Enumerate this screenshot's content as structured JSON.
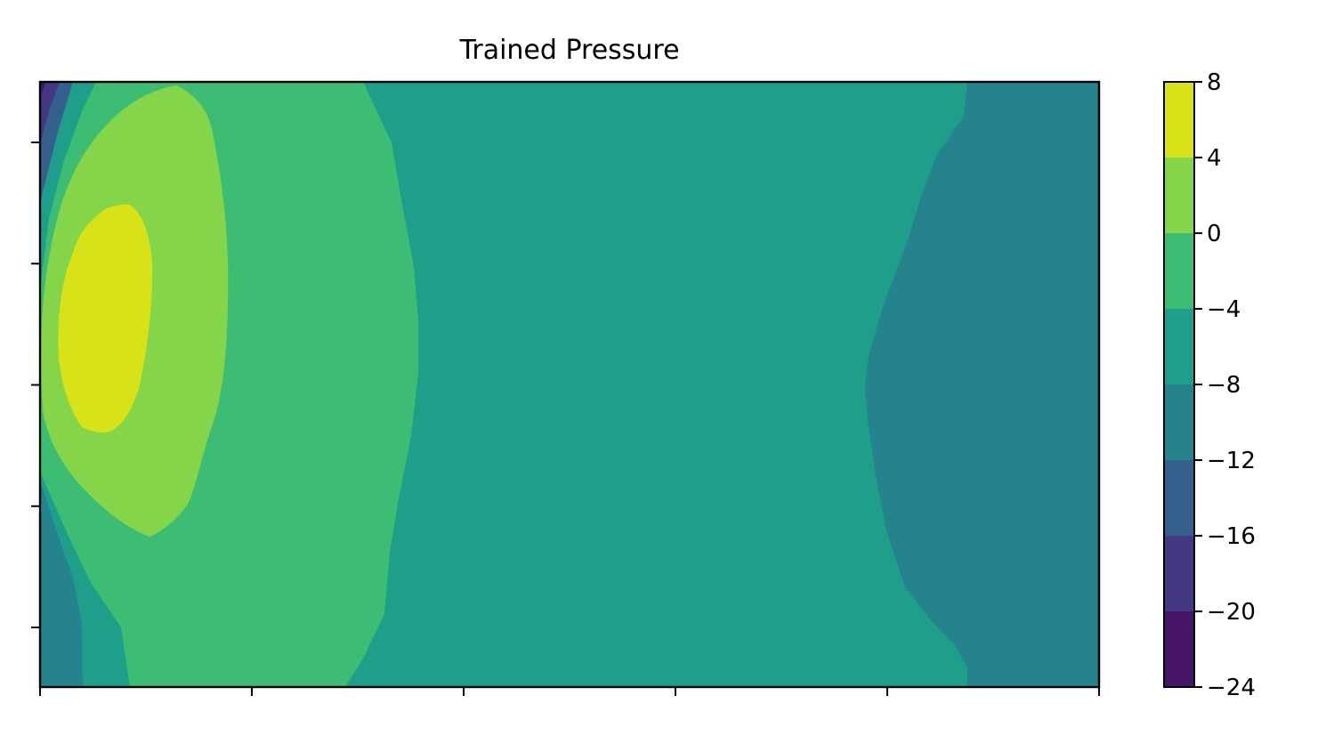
{
  "chart_data": {
    "type": "contour",
    "title": "Trained Pressure",
    "xlabel": "",
    "ylabel": "",
    "x_ticks_count": 6,
    "y_ticks_count": 5,
    "x_tick_labels_shown": false,
    "y_tick_labels_shown": false,
    "colormap": "viridis",
    "colorbar": {
      "levels": [
        -24,
        -20,
        -16,
        -12,
        -8,
        -4,
        0,
        4,
        8
      ],
      "tick_labels": [
        "−24",
        "−20",
        "−16",
        "−12",
        "−8",
        "−4",
        "0",
        "4",
        "8"
      ],
      "colors": [
        "#481668",
        "#453882",
        "#355f8d",
        "#25838e",
        "#1f9e89",
        "#3dbc74",
        "#85d54a",
        "#d8e219"
      ]
    },
    "regions": [
      {
        "level_range": [
          -24,
          -20
        ],
        "description": "left edge, top-left corner strip"
      },
      {
        "level_range": [
          -20,
          -16
        ],
        "description": "left edge, top strip"
      },
      {
        "level_range": [
          -16,
          -12
        ],
        "description": "left edge, top and bottom strips"
      },
      {
        "level_range": [
          -12,
          -8
        ],
        "description": "right portion of domain and left edge strips"
      },
      {
        "level_range": [
          -8,
          -4
        ],
        "description": "central band"
      },
      {
        "level_range": [
          -4,
          0
        ],
        "description": "left-center lobe"
      },
      {
        "level_range": [
          0,
          4
        ],
        "description": "inner left lobe"
      },
      {
        "level_range": [
          4,
          8
        ],
        "description": "peak near left, upper-middle"
      }
    ]
  }
}
